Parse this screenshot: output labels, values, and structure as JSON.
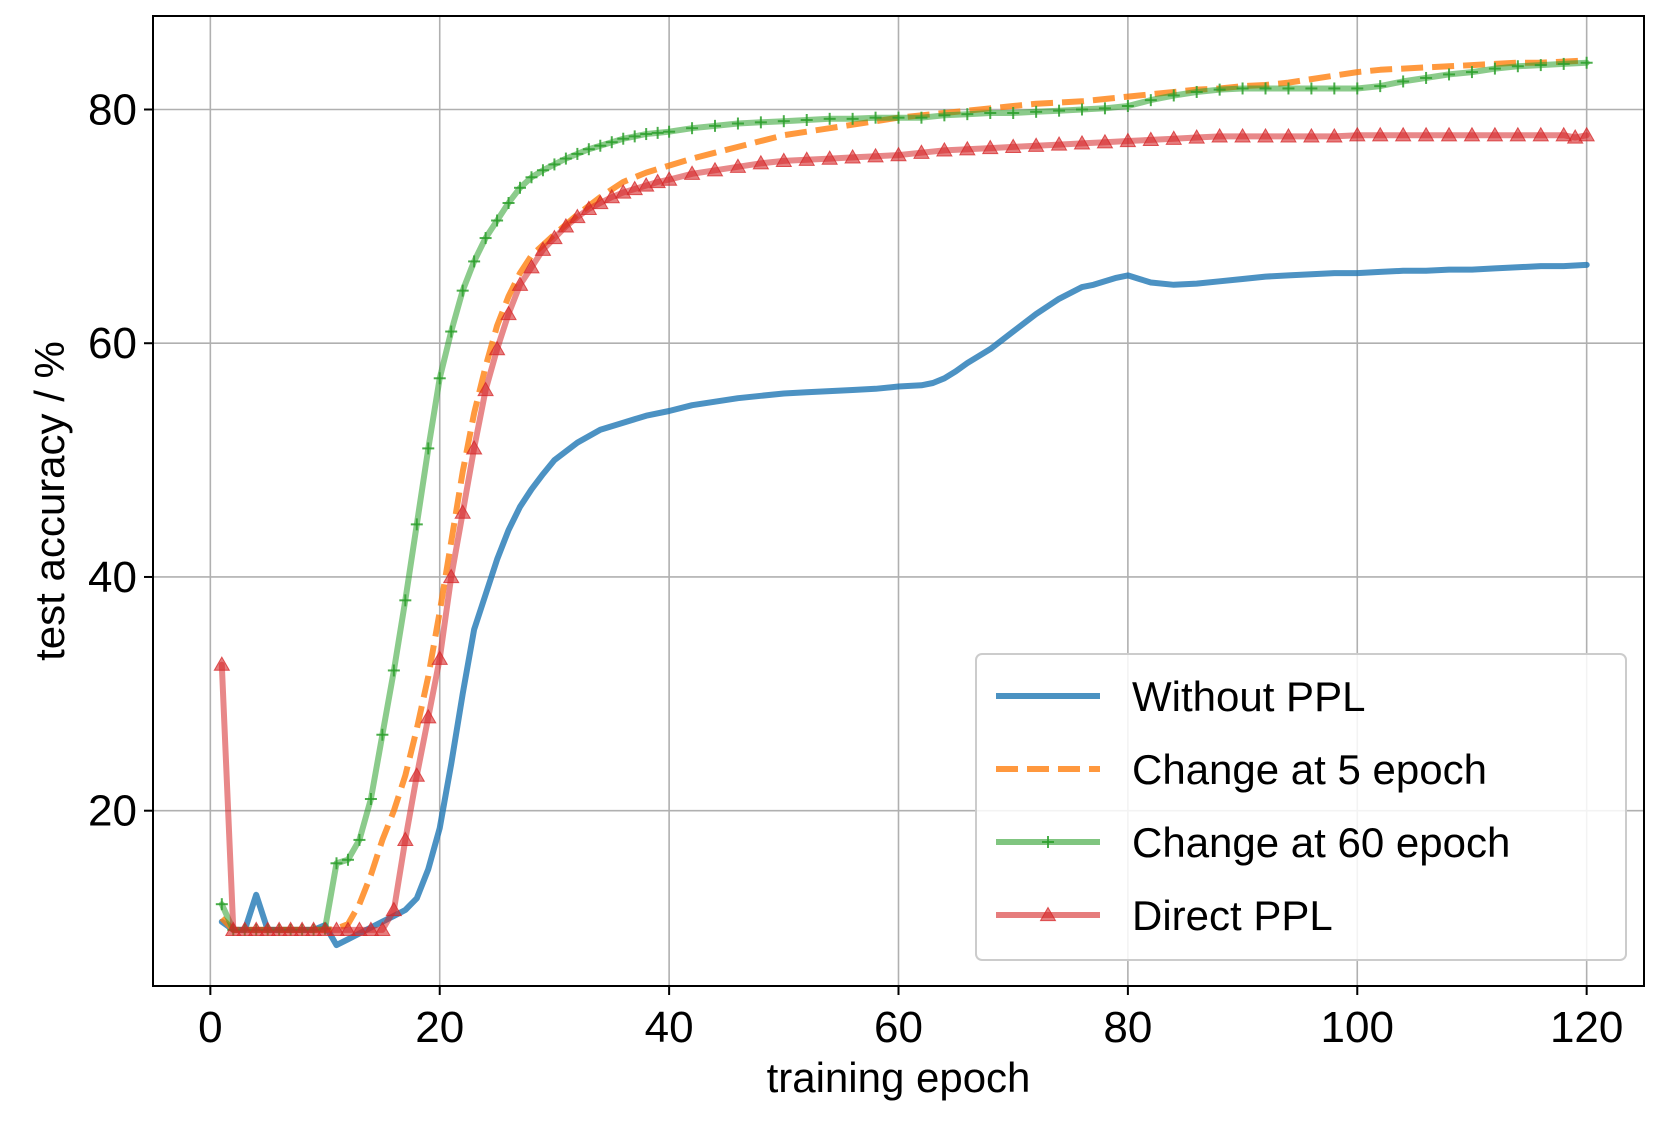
{
  "chart_data": {
    "type": "line",
    "title": "",
    "xlabel": "training epoch",
    "ylabel": "test accuracy / %",
    "xlim": [
      -5,
      125
    ],
    "ylim": [
      5,
      88
    ],
    "xticks": [
      0,
      20,
      40,
      60,
      80,
      100,
      120
    ],
    "xtick_labels": [
      "0",
      "20",
      "40",
      "60",
      "80",
      "100",
      "120"
    ],
    "yticks": [
      20,
      40,
      60,
      80
    ],
    "ytick_labels": [
      "20",
      "40",
      "60",
      "80"
    ],
    "grid": true,
    "legend_position": "lower-right",
    "series": [
      {
        "name": "Without PPL",
        "color": "#1f77b4",
        "style": "solid",
        "marker": "none",
        "points": [
          [
            1,
            10.5
          ],
          [
            2,
            9.8
          ],
          [
            3,
            9.8
          ],
          [
            4,
            12.8
          ],
          [
            5,
            9.8
          ],
          [
            6,
            9.8
          ],
          [
            7,
            9.8
          ],
          [
            8,
            9.8
          ],
          [
            9,
            9.8
          ],
          [
            10,
            10.2
          ],
          [
            11,
            8.5
          ],
          [
            12,
            9.0
          ],
          [
            13,
            9.5
          ],
          [
            14,
            10.0
          ],
          [
            15,
            10.5
          ],
          [
            16,
            11.0
          ],
          [
            17,
            11.5
          ],
          [
            18,
            12.5
          ],
          [
            19,
            15.0
          ],
          [
            20,
            18.5
          ],
          [
            21,
            24.0
          ],
          [
            22,
            30.0
          ],
          [
            23,
            35.5
          ],
          [
            24,
            38.5
          ],
          [
            25,
            41.5
          ],
          [
            26,
            44.0
          ],
          [
            27,
            46.0
          ],
          [
            28,
            47.5
          ],
          [
            29,
            48.8
          ],
          [
            30,
            50.0
          ],
          [
            32,
            51.5
          ],
          [
            34,
            52.6
          ],
          [
            36,
            53.2
          ],
          [
            38,
            53.8
          ],
          [
            40,
            54.2
          ],
          [
            42,
            54.7
          ],
          [
            44,
            55.0
          ],
          [
            46,
            55.3
          ],
          [
            48,
            55.5
          ],
          [
            50,
            55.7
          ],
          [
            52,
            55.8
          ],
          [
            54,
            55.9
          ],
          [
            56,
            56.0
          ],
          [
            58,
            56.1
          ],
          [
            60,
            56.3
          ],
          [
            62,
            56.4
          ],
          [
            63,
            56.6
          ],
          [
            64,
            57.0
          ],
          [
            65,
            57.6
          ],
          [
            66,
            58.3
          ],
          [
            68,
            59.5
          ],
          [
            70,
            61.0
          ],
          [
            72,
            62.5
          ],
          [
            74,
            63.8
          ],
          [
            76,
            64.8
          ],
          [
            77,
            65.0
          ],
          [
            78,
            65.3
          ],
          [
            79,
            65.6
          ],
          [
            80,
            65.8
          ],
          [
            81,
            65.5
          ],
          [
            82,
            65.2
          ],
          [
            84,
            65.0
          ],
          [
            86,
            65.1
          ],
          [
            88,
            65.3
          ],
          [
            90,
            65.5
          ],
          [
            92,
            65.7
          ],
          [
            94,
            65.8
          ],
          [
            96,
            65.9
          ],
          [
            98,
            66.0
          ],
          [
            100,
            66.0
          ],
          [
            102,
            66.1
          ],
          [
            104,
            66.2
          ],
          [
            106,
            66.2
          ],
          [
            108,
            66.3
          ],
          [
            110,
            66.3
          ],
          [
            112,
            66.4
          ],
          [
            114,
            66.5
          ],
          [
            116,
            66.6
          ],
          [
            118,
            66.6
          ],
          [
            120,
            66.7
          ]
        ]
      },
      {
        "name": "Change at 5 epoch",
        "color": "#ff7f0e",
        "style": "dashed",
        "marker": "none",
        "points": [
          [
            1,
            10.8
          ],
          [
            2,
            9.8
          ],
          [
            4,
            9.8
          ],
          [
            6,
            9.8
          ],
          [
            8,
            9.8
          ],
          [
            10,
            9.8
          ],
          [
            11,
            9.9
          ],
          [
            12,
            10.3
          ],
          [
            13,
            12.0
          ],
          [
            14,
            14.5
          ],
          [
            15,
            17.5
          ],
          [
            16,
            20.0
          ],
          [
            17,
            23.0
          ],
          [
            18,
            27.0
          ],
          [
            19,
            31.5
          ],
          [
            20,
            37.0
          ],
          [
            21,
            43.0
          ],
          [
            22,
            49.0
          ],
          [
            23,
            54.0
          ],
          [
            24,
            58.0
          ],
          [
            25,
            61.5
          ],
          [
            26,
            64.0
          ],
          [
            27,
            66.0
          ],
          [
            28,
            67.5
          ],
          [
            30,
            69.3
          ],
          [
            32,
            71.0
          ],
          [
            34,
            72.5
          ],
          [
            36,
            73.8
          ],
          [
            38,
            74.6
          ],
          [
            40,
            75.2
          ],
          [
            42,
            75.8
          ],
          [
            44,
            76.3
          ],
          [
            46,
            76.8
          ],
          [
            48,
            77.3
          ],
          [
            50,
            77.8
          ],
          [
            52,
            78.1
          ],
          [
            54,
            78.4
          ],
          [
            56,
            78.7
          ],
          [
            58,
            79.0
          ],
          [
            60,
            79.3
          ],
          [
            62,
            79.5
          ],
          [
            64,
            79.7
          ],
          [
            66,
            79.9
          ],
          [
            68,
            80.1
          ],
          [
            70,
            80.3
          ],
          [
            72,
            80.5
          ],
          [
            74,
            80.6
          ],
          [
            76,
            80.7
          ],
          [
            78,
            80.9
          ],
          [
            80,
            81.1
          ],
          [
            82,
            81.3
          ],
          [
            84,
            81.5
          ],
          [
            86,
            81.7
          ],
          [
            88,
            81.8
          ],
          [
            90,
            82.0
          ],
          [
            92,
            82.1
          ],
          [
            94,
            82.3
          ],
          [
            96,
            82.6
          ],
          [
            98,
            82.9
          ],
          [
            100,
            83.2
          ],
          [
            102,
            83.4
          ],
          [
            104,
            83.5
          ],
          [
            106,
            83.6
          ],
          [
            108,
            83.7
          ],
          [
            110,
            83.8
          ],
          [
            112,
            83.9
          ],
          [
            114,
            84.0
          ],
          [
            116,
            84.0
          ],
          [
            118,
            84.1
          ],
          [
            120,
            84.2
          ]
        ]
      },
      {
        "name": "Change at 60 epoch",
        "color": "#2ca02c",
        "style": "solid",
        "marker": "plus",
        "points": [
          [
            1,
            12.0
          ],
          [
            2,
            9.8
          ],
          [
            3,
            9.8
          ],
          [
            4,
            9.8
          ],
          [
            5,
            9.8
          ],
          [
            6,
            9.8
          ],
          [
            7,
            9.8
          ],
          [
            8,
            9.8
          ],
          [
            9,
            9.8
          ],
          [
            10,
            9.9
          ],
          [
            11,
            15.5
          ],
          [
            12,
            15.8
          ],
          [
            13,
            17.5
          ],
          [
            14,
            21.0
          ],
          [
            15,
            26.5
          ],
          [
            16,
            32.0
          ],
          [
            17,
            38.0
          ],
          [
            18,
            44.5
          ],
          [
            19,
            51.0
          ],
          [
            20,
            57.0
          ],
          [
            21,
            61.0
          ],
          [
            22,
            64.5
          ],
          [
            23,
            67.0
          ],
          [
            24,
            69.0
          ],
          [
            25,
            70.5
          ],
          [
            26,
            72.0
          ],
          [
            27,
            73.3
          ],
          [
            28,
            74.2
          ],
          [
            29,
            74.8
          ],
          [
            30,
            75.3
          ],
          [
            31,
            75.8
          ],
          [
            32,
            76.2
          ],
          [
            33,
            76.6
          ],
          [
            34,
            76.9
          ],
          [
            35,
            77.2
          ],
          [
            36,
            77.5
          ],
          [
            37,
            77.7
          ],
          [
            38,
            77.9
          ],
          [
            39,
            78.0
          ],
          [
            40,
            78.1
          ],
          [
            42,
            78.4
          ],
          [
            44,
            78.6
          ],
          [
            46,
            78.8
          ],
          [
            48,
            78.9
          ],
          [
            50,
            79.0
          ],
          [
            52,
            79.1
          ],
          [
            54,
            79.2
          ],
          [
            56,
            79.2
          ],
          [
            58,
            79.3
          ],
          [
            60,
            79.3
          ],
          [
            62,
            79.3
          ],
          [
            64,
            79.5
          ],
          [
            66,
            79.6
          ],
          [
            68,
            79.7
          ],
          [
            70,
            79.7
          ],
          [
            72,
            79.8
          ],
          [
            74,
            79.9
          ],
          [
            76,
            80.0
          ],
          [
            78,
            80.1
          ],
          [
            80,
            80.3
          ],
          [
            82,
            80.8
          ],
          [
            84,
            81.2
          ],
          [
            86,
            81.5
          ],
          [
            88,
            81.7
          ],
          [
            90,
            81.8
          ],
          [
            92,
            81.8
          ],
          [
            94,
            81.8
          ],
          [
            96,
            81.8
          ],
          [
            98,
            81.8
          ],
          [
            100,
            81.8
          ],
          [
            102,
            82.0
          ],
          [
            104,
            82.4
          ],
          [
            106,
            82.7
          ],
          [
            108,
            83.0
          ],
          [
            110,
            83.2
          ],
          [
            112,
            83.5
          ],
          [
            114,
            83.7
          ],
          [
            116,
            83.8
          ],
          [
            118,
            83.9
          ],
          [
            120,
            84.0
          ]
        ]
      },
      {
        "name": "Direct PPL",
        "color": "#d62728",
        "style": "solid",
        "marker": "triangle",
        "points": [
          [
            1,
            32.5
          ],
          [
            2,
            9.8
          ],
          [
            3,
            9.8
          ],
          [
            4,
            9.8
          ],
          [
            5,
            9.8
          ],
          [
            6,
            9.8
          ],
          [
            7,
            9.8
          ],
          [
            8,
            9.8
          ],
          [
            9,
            9.8
          ],
          [
            10,
            9.8
          ],
          [
            11,
            9.8
          ],
          [
            12,
            9.8
          ],
          [
            13,
            9.8
          ],
          [
            14,
            9.8
          ],
          [
            15,
            9.8
          ],
          [
            16,
            11.5
          ],
          [
            17,
            17.5
          ],
          [
            18,
            23.0
          ],
          [
            19,
            28.0
          ],
          [
            20,
            33.0
          ],
          [
            21,
            40.0
          ],
          [
            22,
            45.5
          ],
          [
            23,
            51.0
          ],
          [
            24,
            56.0
          ],
          [
            25,
            59.5
          ],
          [
            26,
            62.5
          ],
          [
            27,
            65.0
          ],
          [
            28,
            66.5
          ],
          [
            29,
            68.0
          ],
          [
            30,
            69.0
          ],
          [
            31,
            70.0
          ],
          [
            32,
            70.8
          ],
          [
            33,
            71.5
          ],
          [
            34,
            72.0
          ],
          [
            35,
            72.5
          ],
          [
            36,
            72.9
          ],
          [
            37,
            73.2
          ],
          [
            38,
            73.5
          ],
          [
            39,
            73.8
          ],
          [
            40,
            74.0
          ],
          [
            42,
            74.5
          ],
          [
            44,
            74.8
          ],
          [
            46,
            75.1
          ],
          [
            48,
            75.4
          ],
          [
            50,
            75.6
          ],
          [
            52,
            75.7
          ],
          [
            54,
            75.8
          ],
          [
            56,
            75.9
          ],
          [
            58,
            76.0
          ],
          [
            60,
            76.1
          ],
          [
            62,
            76.3
          ],
          [
            64,
            76.5
          ],
          [
            66,
            76.6
          ],
          [
            68,
            76.7
          ],
          [
            70,
            76.8
          ],
          [
            72,
            76.9
          ],
          [
            74,
            77.0
          ],
          [
            76,
            77.1
          ],
          [
            78,
            77.2
          ],
          [
            80,
            77.3
          ],
          [
            82,
            77.4
          ],
          [
            84,
            77.5
          ],
          [
            86,
            77.6
          ],
          [
            88,
            77.7
          ],
          [
            90,
            77.7
          ],
          [
            92,
            77.7
          ],
          [
            94,
            77.7
          ],
          [
            96,
            77.7
          ],
          [
            98,
            77.7
          ],
          [
            100,
            77.8
          ],
          [
            102,
            77.8
          ],
          [
            104,
            77.8
          ],
          [
            106,
            77.8
          ],
          [
            108,
            77.8
          ],
          [
            110,
            77.8
          ],
          [
            112,
            77.8
          ],
          [
            114,
            77.8
          ],
          [
            116,
            77.8
          ],
          [
            118,
            77.8
          ],
          [
            119,
            77.6
          ],
          [
            120,
            77.8
          ]
        ]
      }
    ]
  }
}
